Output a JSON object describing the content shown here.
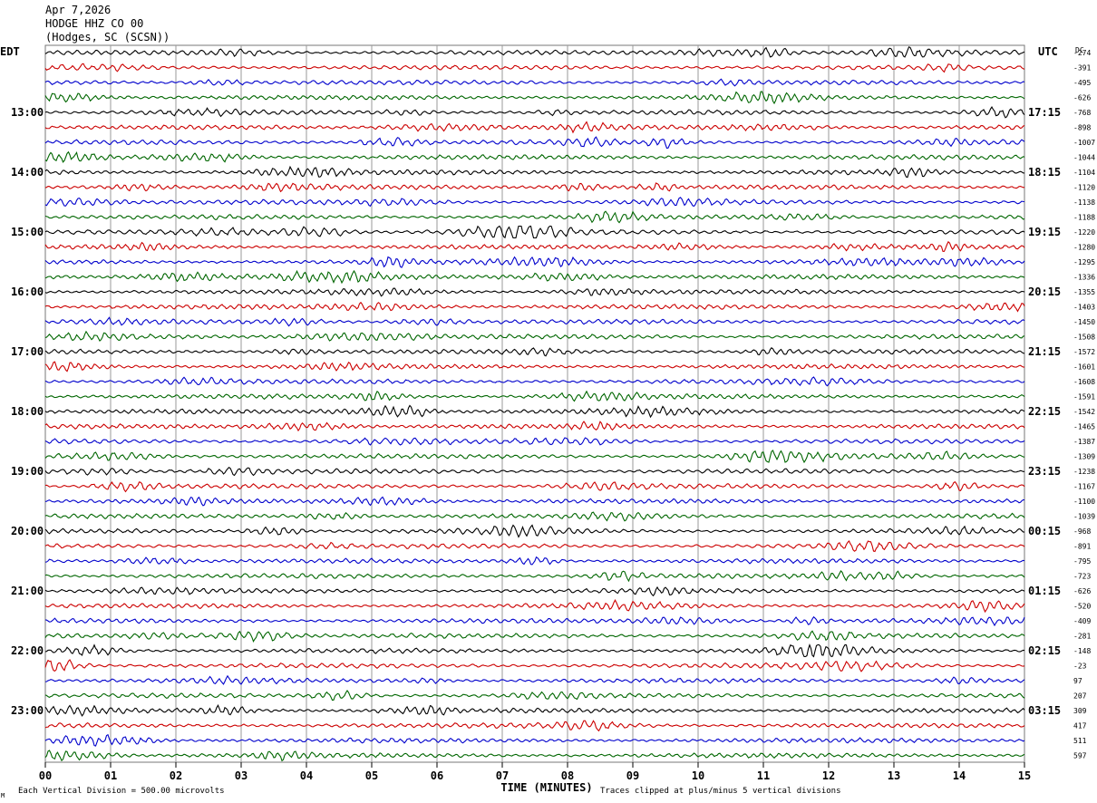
{
  "header": {
    "date": "Apr 7,2026",
    "station": "HODGE HHZ CO 00",
    "location": "(Hodges, SC (SCSN))"
  },
  "left_zone": "EDT",
  "right_zone": "UTC",
  "dc_label": "DC",
  "footer": {
    "scale_note": "Each Vertical Division =  500.00 microvolts",
    "clip_note": "Traces clipped at plus/minus 5 vertical divisions",
    "corner_mark": "M"
  },
  "colors": {
    "cycle": [
      "#000000",
      "#cc0000",
      "#0000cc",
      "#006600"
    ],
    "grid": "#9a9a9a"
  },
  "chart_data": {
    "type": "line",
    "title": "",
    "xlabel": "TIME (MINUTES)",
    "xlim": [
      0,
      15
    ],
    "x_ticks": [
      "00",
      "01",
      "02",
      "03",
      "04",
      "05",
      "06",
      "07",
      "08",
      "09",
      "10",
      "11",
      "12",
      "13",
      "14",
      "15"
    ],
    "left_hour_labels": [
      "13:00",
      "14:00",
      "15:00",
      "16:00",
      "17:00",
      "18:00",
      "19:00",
      "20:00",
      "21:00",
      "22:00",
      "23:00"
    ],
    "right_hour_labels": [
      "17:15",
      "18:15",
      "19:15",
      "20:15",
      "21:15",
      "22:15",
      "23:15",
      "00:15",
      "01:15",
      "02:15",
      "03:15"
    ],
    "dc_offsets": [
      "-274",
      "-391",
      "-495",
      "-626",
      "-768",
      "-898",
      "-1007",
      "-1044",
      "-1104",
      "-1120",
      "-1138",
      "-1188",
      "-1220",
      "-1280",
      "-1295",
      "-1336",
      "-1355",
      "-1403",
      "-1450",
      "-1508",
      "-1572",
      "-1601",
      "-1608",
      "-1591",
      "-1542",
      "-1465",
      "-1387",
      "-1309",
      "-1238",
      "-1167",
      "-1100",
      "-1039",
      "-968",
      "-891",
      "-795",
      "-723",
      "-626",
      "-520",
      "-409",
      "-281",
      "-148",
      "-23",
      "97",
      "207",
      "309",
      "417",
      "511",
      "597"
    ]
  }
}
